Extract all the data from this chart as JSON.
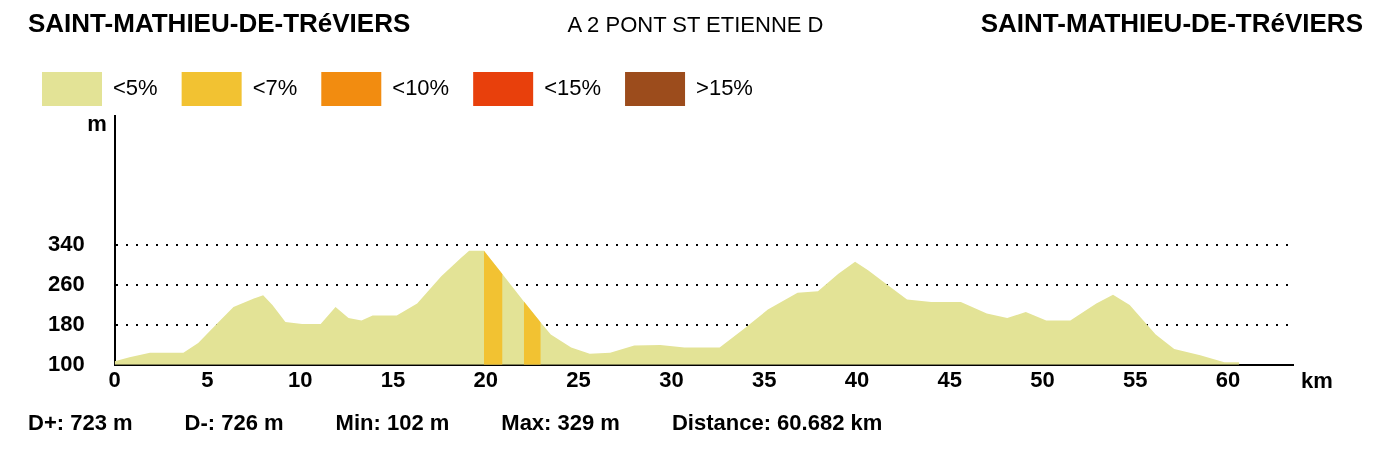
{
  "chart_data": {
    "type": "area",
    "title": "SAINT-MATHIEU-DE-TRéVIERS",
    "subtitle": "A 2 PONT ST ETIENNE D",
    "xlabel": "km",
    "ylabel": "m",
    "annotations": [
      "SAINT-MATHIEU-DE-TRéVIERS",
      "D+: 723 m",
      "D-: 726 m",
      "Min: 102 m",
      "Max: 329 m",
      "Distance: 60.682 km"
    ],
    "xlim": [
      0,
      63.5
    ],
    "xticks": [
      0,
      5,
      10,
      15,
      20,
      25,
      30,
      35,
      40,
      45,
      50,
      55,
      60
    ],
    "ylim": [
      100,
      600
    ],
    "yticks": [
      100,
      180,
      260,
      340
    ],
    "grid": "y",
    "legend": "top left",
    "series": [
      {
        "name": "<5%",
        "color": "#e3e396",
        "x": [
          0,
          0.8,
          1.9,
          3.7,
          4.5,
          5.6,
          6.4,
          7.5,
          8.0,
          8.5,
          9.2,
          10.1,
          11.1,
          11.9,
          12.6,
          13.3,
          13.9,
          15.2,
          16.3,
          17.6,
          18.7,
          19.1,
          19.9,
          20.9,
          22.05,
          22.96,
          23.5,
          24.6,
          25.6,
          26.7,
          28.0,
          29.4,
          30.7,
          32.6,
          33.9,
          35.2,
          36.8,
          37.9,
          39.0,
          39.9,
          40.6,
          41.6,
          42.7,
          44.0,
          45.6,
          47.0,
          48.1,
          49.1,
          50.2,
          51.5,
          52.9,
          53.8,
          54.7,
          56.1,
          57.1,
          58.5,
          59.8,
          60.6
        ],
        "values": [
          107,
          115,
          124,
          124,
          144,
          186,
          216,
          233,
          240,
          220,
          186,
          182,
          182,
          216,
          194,
          189,
          199,
          199,
          223,
          278,
          316,
          329,
          329,
          282,
          227,
          185,
          161,
          135,
          122,
          124,
          139,
          140,
          135,
          135,
          172,
          211,
          245,
          248,
          283,
          307,
          290,
          262,
          231,
          226,
          226,
          203,
          194,
          206,
          189,
          189,
          223,
          241,
          220,
          161,
          132,
          119,
          105,
          105
        ]
      },
      {
        "name": "<7%",
        "color": "#f2c232",
        "x": [
          19.9,
          20.9,
          21.5,
          22.05,
          22.96
        ],
        "values": [
          329,
          282,
          null,
          227,
          185
        ]
      },
      {
        "name": "<10%",
        "color": "#f28c10"
      },
      {
        "name": "<15%",
        "color": "#e8400c"
      },
      {
        "name": ">15%",
        "color": "#9c4c1c"
      }
    ]
  }
}
